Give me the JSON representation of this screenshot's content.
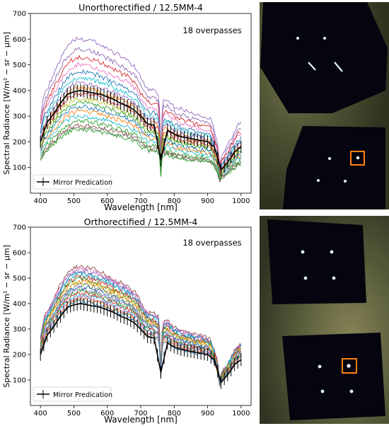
{
  "figure": {
    "legend_label": "Mirror Predication",
    "overpass_label": "18 overpasses"
  },
  "chart_data": [
    {
      "type": "line",
      "title": "Unorthorectified / 12.5MM-4",
      "xlabel": "Wavelength [nm]",
      "ylabel": "Spectral Radiance [W/m² − sr − μm]",
      "xlim": [
        370,
        1030
      ],
      "ylim": [
        0,
        700
      ],
      "xticks": [
        400,
        500,
        600,
        700,
        800,
        900,
        1000
      ],
      "yticks": [
        100,
        200,
        300,
        400,
        500,
        600,
        700
      ],
      "legend_position": "lower-left",
      "annotation": "18 overpasses",
      "envelope": {
        "x": [
          400,
          410,
          430,
          450,
          470,
          490,
          510,
          530,
          550,
          570,
          600,
          630,
          660,
          690,
          700,
          720,
          740,
          755,
          760,
          765,
          780,
          800,
          830,
          860,
          890,
          910,
          930,
          935,
          940,
          950,
          970,
          990,
          1000
        ],
        "base": [
          200,
          250,
          290,
          330,
          365,
          390,
          400,
          400,
          395,
          390,
          375,
          360,
          345,
          320,
          295,
          270,
          265,
          255,
          110,
          240,
          245,
          225,
          215,
          205,
          200,
          190,
          130,
          75,
          90,
          105,
          140,
          175,
          180
        ]
      },
      "series_scales": [
        1.5,
        1.4,
        1.32,
        1.25,
        1.18,
        1.12,
        1.07,
        1.02,
        0.97,
        0.92,
        0.88,
        0.84,
        0.8,
        0.75,
        0.7,
        0.66,
        0.64,
        0.62
      ],
      "series_colors": [
        "#9467bd",
        "#8c6bb1",
        "#d62728",
        "#e377c2",
        "#1f77b4",
        "#17becf",
        "#9467bd",
        "#ff7f0e",
        "#d62728",
        "#bcbd22",
        "#2ca02c",
        "#1f77b4",
        "#ff7f0e",
        "#17becf",
        "#2ca02c",
        "#8c564b",
        "#7f7f7f",
        "#2ca02c"
      ],
      "mirror": {
        "name": "Mirror Predication",
        "x": [
          400,
          420,
          440,
          460,
          480,
          500,
          520,
          540,
          560,
          580,
          600,
          620,
          640,
          660,
          680,
          700,
          720,
          740,
          760,
          780,
          800,
          820,
          840,
          860,
          880,
          900,
          920,
          940,
          960,
          980,
          1000
        ],
        "y": [
          200,
          275,
          310,
          350,
          385,
          395,
          400,
          395,
          390,
          385,
          375,
          365,
          350,
          340,
          325,
          300,
          270,
          265,
          130,
          245,
          230,
          220,
          215,
          210,
          205,
          200,
          180,
          90,
          120,
          160,
          180
        ],
        "err": 25
      }
    },
    {
      "type": "line",
      "title": "Orthorectified / 12.5MM-4",
      "xlabel": "Wavelength [nm]",
      "ylabel": "Spectral Radiance [W/m² − sr − μm]",
      "xlim": [
        370,
        1030
      ],
      "ylim": [
        0,
        700
      ],
      "xticks": [
        400,
        500,
        600,
        700,
        800,
        900,
        1000
      ],
      "yticks": [
        100,
        200,
        300,
        400,
        500,
        600,
        700
      ],
      "legend_position": "lower-left",
      "annotation": "18 overpasses",
      "envelope": {
        "x": [
          400,
          410,
          430,
          450,
          470,
          490,
          510,
          530,
          550,
          570,
          600,
          630,
          660,
          690,
          700,
          720,
          740,
          755,
          760,
          765,
          780,
          800,
          830,
          860,
          890,
          910,
          930,
          935,
          940,
          950,
          970,
          990,
          1000
        ],
        "base": [
          200,
          250,
          290,
          330,
          365,
          390,
          400,
          400,
          395,
          390,
          375,
          360,
          345,
          320,
          295,
          270,
          265,
          255,
          110,
          240,
          245,
          225,
          215,
          205,
          200,
          190,
          130,
          75,
          90,
          105,
          140,
          175,
          180
        ]
      },
      "series_scales": [
        1.36,
        1.34,
        1.32,
        1.3,
        1.28,
        1.26,
        1.24,
        1.22,
        1.2,
        1.18,
        1.16,
        1.14,
        1.12,
        1.1,
        1.08,
        1.06,
        1.04,
        1.02
      ],
      "series_colors": [
        "#8c564b",
        "#e377c2",
        "#9467bd",
        "#1f77b4",
        "#17becf",
        "#d62728",
        "#2ca02c",
        "#ff7f0e",
        "#bcbd22",
        "#7f7f7f",
        "#1f77b4",
        "#9467bd",
        "#2ca02c",
        "#d62728",
        "#17becf",
        "#e377c2",
        "#ff7f0e",
        "#1f77b4"
      ],
      "mirror": {
        "name": "Mirror Predication",
        "x": [
          400,
          420,
          440,
          460,
          480,
          500,
          520,
          540,
          560,
          580,
          600,
          620,
          640,
          660,
          680,
          700,
          720,
          740,
          760,
          780,
          800,
          820,
          840,
          860,
          880,
          900,
          920,
          940,
          960,
          980,
          1000
        ],
        "y": [
          200,
          275,
          310,
          350,
          385,
          395,
          400,
          395,
          390,
          385,
          375,
          365,
          350,
          340,
          325,
          300,
          270,
          265,
          130,
          245,
          230,
          220,
          215,
          210,
          205,
          200,
          180,
          90,
          120,
          160,
          180
        ],
        "err": 25
      }
    }
  ]
}
